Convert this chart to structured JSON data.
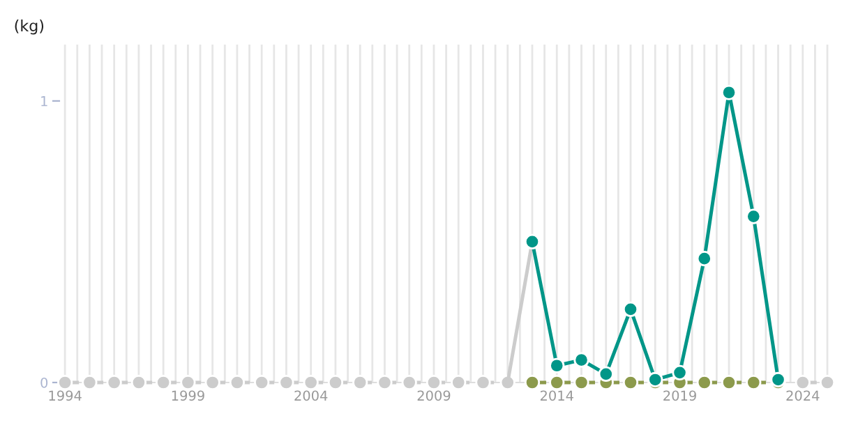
{
  "chart_data": {
    "type": "line",
    "ylabel": "(kg)",
    "xlim": [
      1993.8,
      2025.2
    ],
    "ylim": [
      0,
      1.2
    ],
    "yticks": [
      0,
      1
    ],
    "xticks": [
      1994,
      {
        "value": 1994.5,
        "label": null
      },
      {
        "value": 1995,
        "label": null
      },
      {
        "value": 1995.5,
        "label": null
      },
      {
        "value": 1996,
        "label": null
      },
      {
        "value": 1996.5,
        "label": null
      },
      {
        "value": 1997,
        "label": null
      },
      {
        "value": 1997.5,
        "label": null
      },
      {
        "value": 1998,
        "label": null
      },
      {
        "value": 1998.5,
        "label": null
      },
      1999,
      {
        "value": 1999.5,
        "label": null
      },
      {
        "value": 2000,
        "label": null
      },
      {
        "value": 2000.5,
        "label": null
      },
      {
        "value": 2001,
        "label": null
      },
      {
        "value": 2001.5,
        "label": null
      },
      {
        "value": 2002,
        "label": null
      },
      {
        "value": 2002.5,
        "label": null
      },
      {
        "value": 2003,
        "label": null
      },
      {
        "value": 2003.5,
        "label": null
      },
      2004,
      {
        "value": 2004.5,
        "label": null
      },
      {
        "value": 2005,
        "label": null
      },
      {
        "value": 2005.5,
        "label": null
      },
      {
        "value": 2006,
        "label": null
      },
      {
        "value": 2006.5,
        "label": null
      },
      {
        "value": 2007,
        "label": null
      },
      {
        "value": 2007.5,
        "label": null
      },
      {
        "value": 2008,
        "label": null
      },
      {
        "value": 2008.5,
        "label": null
      },
      2009,
      {
        "value": 2009.5,
        "label": null
      },
      {
        "value": 2010,
        "label": null
      },
      {
        "value": 2010.5,
        "label": null
      },
      {
        "value": 2011,
        "label": null
      },
      {
        "value": 2011.5,
        "label": null
      },
      {
        "value": 2012,
        "label": null
      },
      {
        "value": 2012.5,
        "label": null
      },
      {
        "value": 2013,
        "label": null
      },
      {
        "value": 2013.5,
        "label": null
      },
      2014,
      {
        "value": 2014.5,
        "label": null
      },
      {
        "value": 2015,
        "label": null
      },
      {
        "value": 2015.5,
        "label": null
      },
      {
        "value": 2016,
        "label": null
      },
      {
        "value": 2016.5,
        "label": null
      },
      {
        "value": 2017,
        "label": null
      },
      {
        "value": 2017.5,
        "label": null
      },
      {
        "value": 2018,
        "label": null
      },
      {
        "value": 2018.5,
        "label": null
      },
      2019,
      {
        "value": 2019.5,
        "label": null
      },
      {
        "value": 2020,
        "label": null
      },
      {
        "value": 2020.5,
        "label": null
      },
      {
        "value": 2021,
        "label": null
      },
      {
        "value": 2021.5,
        "label": null
      },
      {
        "value": 2022,
        "label": null
      },
      {
        "value": 2022.5,
        "label": null
      },
      {
        "value": 2023,
        "label": null
      },
      {
        "value": 2023.5,
        "label": null
      },
      2024,
      {
        "value": 2024.5,
        "label": null
      },
      {
        "value": 2025,
        "label": null
      }
    ],
    "grid": "x",
    "marker": "circle",
    "legend": false,
    "series": [
      {
        "color": "#cccccc",
        "line_style": "dashed",
        "x": [
          1994,
          1995,
          1996,
          1997,
          1998,
          1999,
          2000,
          2001,
          2002,
          2003,
          2004,
          2005,
          2006,
          2007,
          2008,
          2009,
          2010,
          2011,
          2012
        ],
        "values": [
          0,
          0,
          0,
          0,
          0,
          0,
          0,
          0,
          0,
          0,
          0,
          0,
          0,
          0,
          0,
          0,
          0,
          0,
          0
        ]
      },
      {
        "color": "#cccccc",
        "line_style": "solid",
        "marker": "none",
        "x": [
          2012,
          2013
        ],
        "values": [
          0,
          0.5
        ]
      },
      {
        "color": "#cccccc",
        "line_style": "dashed",
        "x": [
          2024,
          2025
        ],
        "values": [
          0,
          0
        ]
      },
      {
        "color": "#8c9a4c",
        "line_style": "dashed",
        "x": [
          2013,
          2014,
          2015,
          2016,
          2017,
          2018,
          2019,
          2020,
          2021,
          2022,
          2023
        ],
        "values": [
          0,
          0,
          0,
          0,
          0,
          0,
          0,
          0,
          0,
          0,
          0
        ]
      },
      {
        "color": "#009688",
        "line_style": "solid",
        "x": [
          2013,
          2014,
          2015,
          2016,
          2017,
          2018,
          2019,
          2020,
          2021,
          2022,
          2023
        ],
        "values": [
          0.5,
          0.06,
          0.08,
          0.03,
          0.26,
          0.01,
          0.035,
          0.44,
          1.03,
          0.59,
          0.01
        ]
      }
    ]
  }
}
